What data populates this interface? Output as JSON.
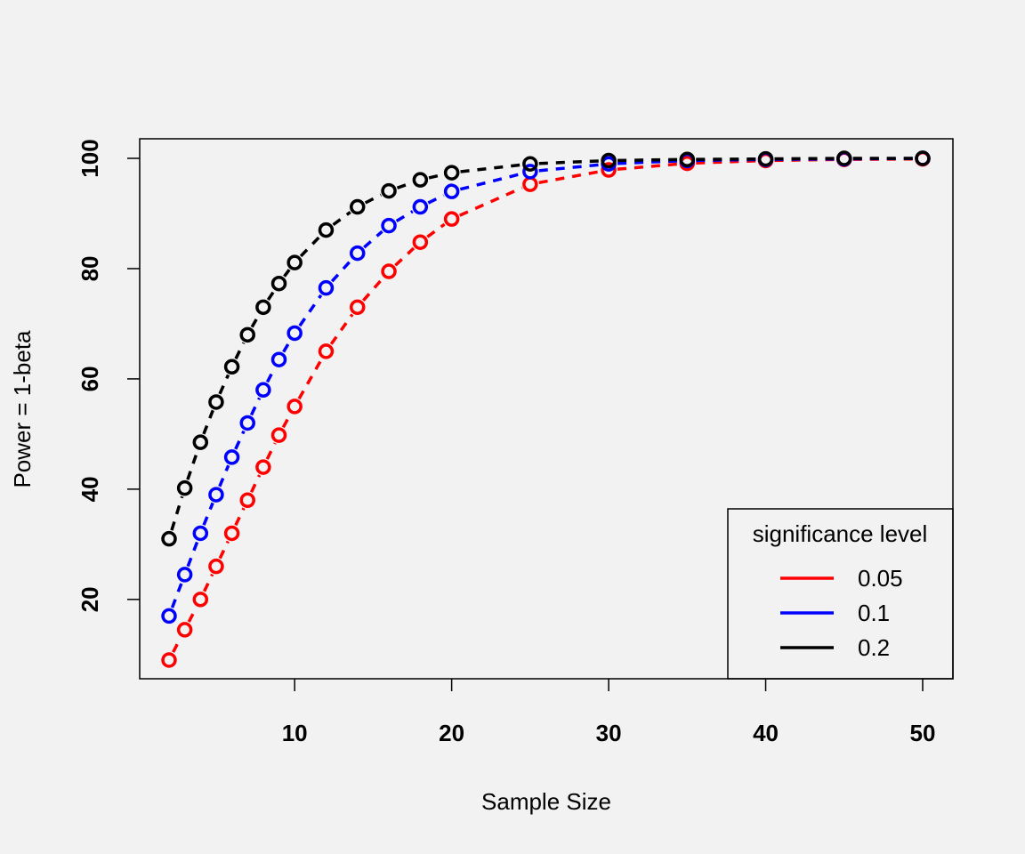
{
  "chart_data": {
    "type": "line",
    "title": "",
    "xlabel": "Sample Size",
    "ylabel": "Power = 1-beta",
    "xlim": [
      2,
      50
    ],
    "ylim": [
      9,
      100
    ],
    "x_ticks": [
      10,
      20,
      30,
      40,
      50
    ],
    "y_ticks": [
      20,
      40,
      60,
      80,
      100
    ],
    "x_tick_labels": [
      "10",
      "20",
      "30",
      "40",
      "50"
    ],
    "y_tick_labels": [
      "20",
      "40",
      "60",
      "80",
      "100"
    ],
    "grid": false,
    "legend": {
      "title": "significance level",
      "position": "bottom-right",
      "entries": [
        "0.05",
        "0.1",
        "0.2"
      ]
    },
    "x": [
      2,
      3,
      4,
      5,
      6,
      7,
      8,
      9,
      10,
      12,
      14,
      16,
      18,
      20,
      25,
      30,
      35,
      40,
      45,
      50
    ],
    "series": [
      {
        "name": "0.05",
        "color": "#ff0000",
        "values": [
          9,
          14.5,
          20,
          26,
          32,
          38,
          44,
          49.8,
          55,
          65,
          73,
          79.5,
          84.8,
          89,
          95.3,
          97.9,
          99.1,
          99.6,
          99.8,
          99.9
        ]
      },
      {
        "name": "0.1",
        "color": "#0000ff",
        "values": [
          17,
          24.5,
          32,
          39,
          45.8,
          52,
          58,
          63.5,
          68.3,
          76.5,
          82.8,
          87.8,
          91.2,
          94,
          97.6,
          99.0,
          99.6,
          99.8,
          99.9,
          100
        ]
      },
      {
        "name": "0.2",
        "color": "#000000",
        "values": [
          31,
          40.2,
          48.5,
          55.8,
          62.2,
          68,
          73,
          77.3,
          81.1,
          87,
          91.2,
          94.1,
          96.1,
          97.4,
          99.0,
          99.6,
          99.8,
          99.9,
          100,
          100
        ]
      }
    ]
  }
}
